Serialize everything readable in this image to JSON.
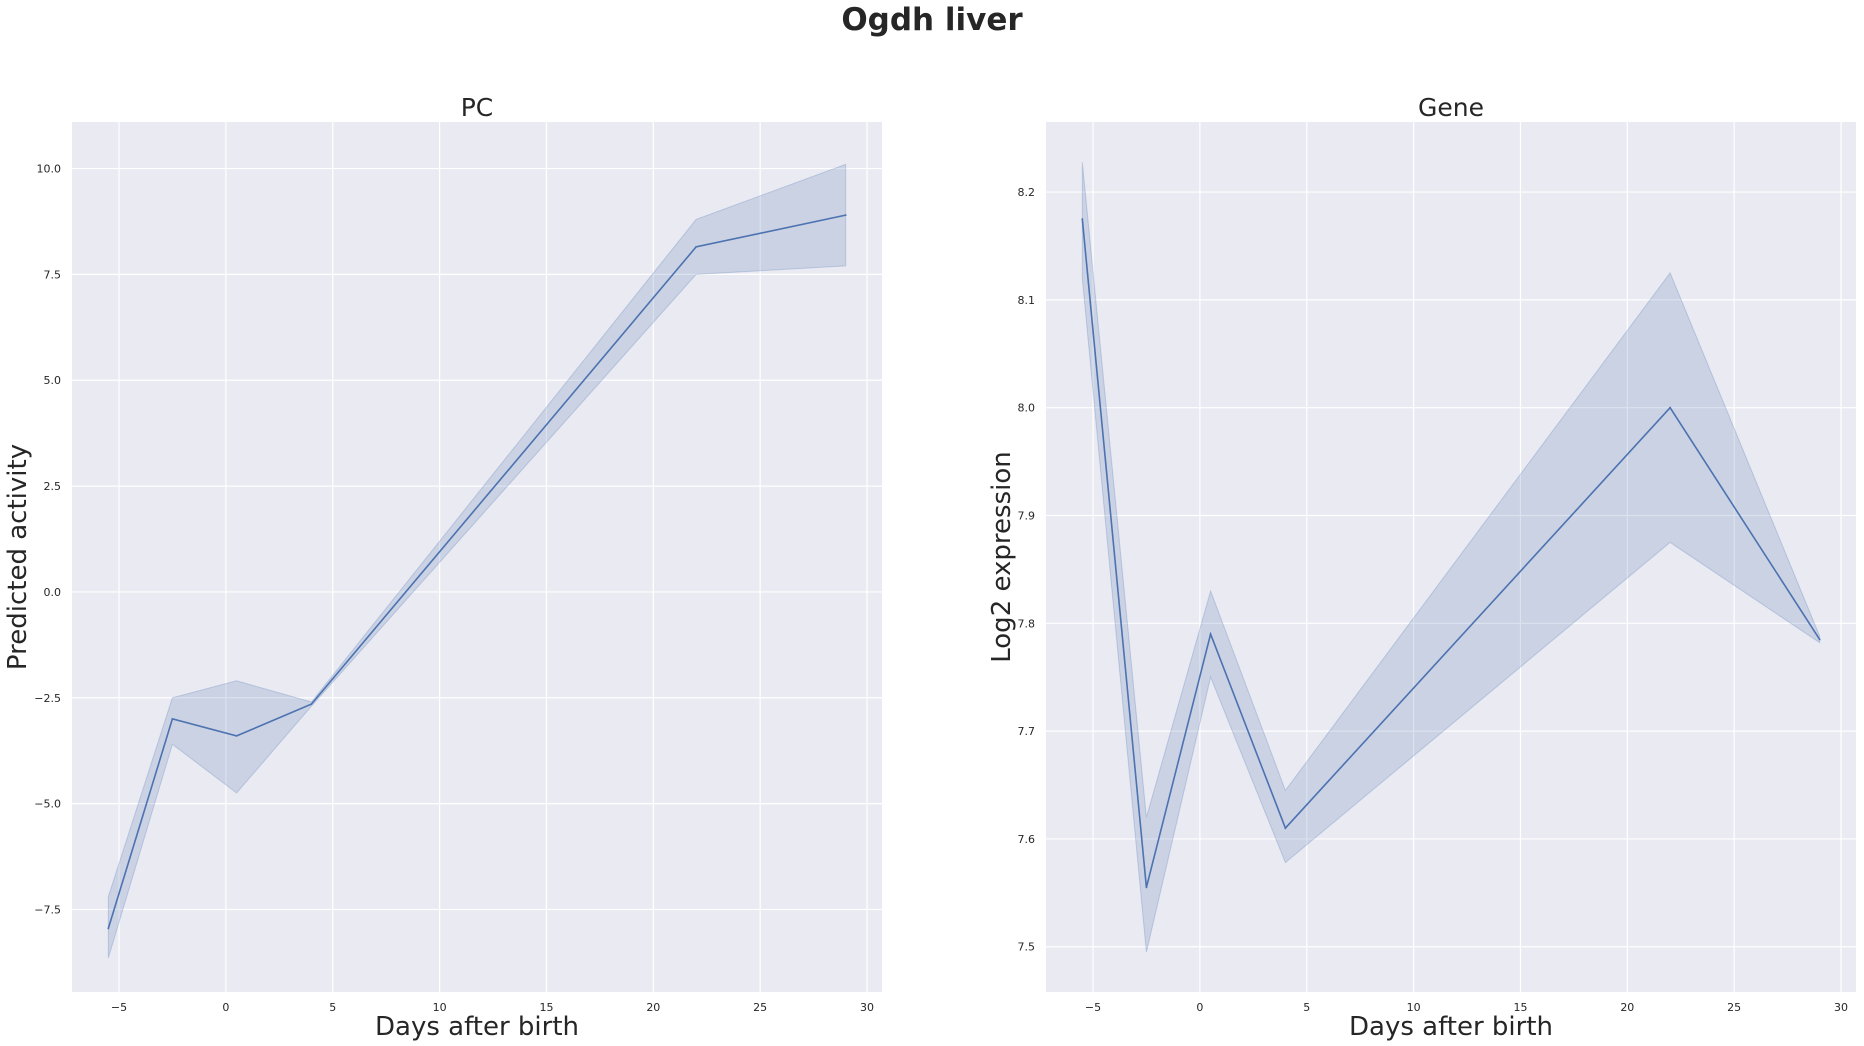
{
  "figure": {
    "title": "Ogdh liver"
  },
  "chart_data": [
    {
      "type": "line",
      "title": "PC",
      "xlabel": "Days after birth",
      "ylabel": "Predicted activity",
      "xlim": [
        -7.2,
        30.7
      ],
      "ylim": [
        -9.45,
        11.1
      ],
      "xticks": [
        -5,
        0,
        5,
        10,
        15,
        20,
        25,
        30
      ],
      "xtick_labels": [
        "−5",
        "0",
        "5",
        "10",
        "15",
        "20",
        "25",
        "30"
      ],
      "yticks": [
        -7.5,
        -5.0,
        -2.5,
        0.0,
        2.5,
        5.0,
        7.5,
        10.0
      ],
      "ytick_labels": [
        "−7.5",
        "−5.0",
        "−2.5",
        "0.0",
        "2.5",
        "5.0",
        "7.5",
        "10.0"
      ],
      "grid": true,
      "series": [
        {
          "color": "#4c72b0",
          "x": [
            -5.5,
            -2.5,
            0.5,
            4,
            22,
            29
          ],
          "y": [
            -7.95,
            -3.0,
            -3.4,
            -2.65,
            8.15,
            8.9
          ],
          "ci_lower": [
            -8.65,
            -3.6,
            -4.75,
            -2.7,
            7.5,
            7.7
          ],
          "ci_upper": [
            -7.2,
            -2.5,
            -2.1,
            -2.6,
            8.8,
            10.1
          ]
        }
      ]
    },
    {
      "type": "line",
      "title": "Gene",
      "xlabel": "Days after birth",
      "ylabel": "Log2 expression",
      "xlim": [
        -7.2,
        30.7
      ],
      "ylim": [
        7.458,
        8.265
      ],
      "xticks": [
        -5,
        0,
        5,
        10,
        15,
        20,
        25,
        30
      ],
      "xtick_labels": [
        "−5",
        "0",
        "5",
        "10",
        "15",
        "20",
        "25",
        "30"
      ],
      "yticks": [
        7.5,
        7.6,
        7.7,
        7.8,
        7.9,
        8.0,
        8.1,
        8.2
      ],
      "ytick_labels": [
        "7.5",
        "7.6",
        "7.7",
        "7.8",
        "7.9",
        "8.0",
        "8.1",
        "8.2"
      ],
      "grid": true,
      "series": [
        {
          "color": "#4c72b0",
          "x": [
            -5.5,
            -2.5,
            0.5,
            4,
            22,
            29
          ],
          "y": [
            8.175,
            7.555,
            7.79,
            7.61,
            8.0,
            7.785
          ],
          "ci_lower": [
            8.12,
            7.495,
            7.75,
            7.578,
            7.875,
            7.782
          ],
          "ci_upper": [
            8.228,
            7.62,
            7.83,
            7.645,
            8.125,
            7.788
          ]
        }
      ]
    }
  ]
}
